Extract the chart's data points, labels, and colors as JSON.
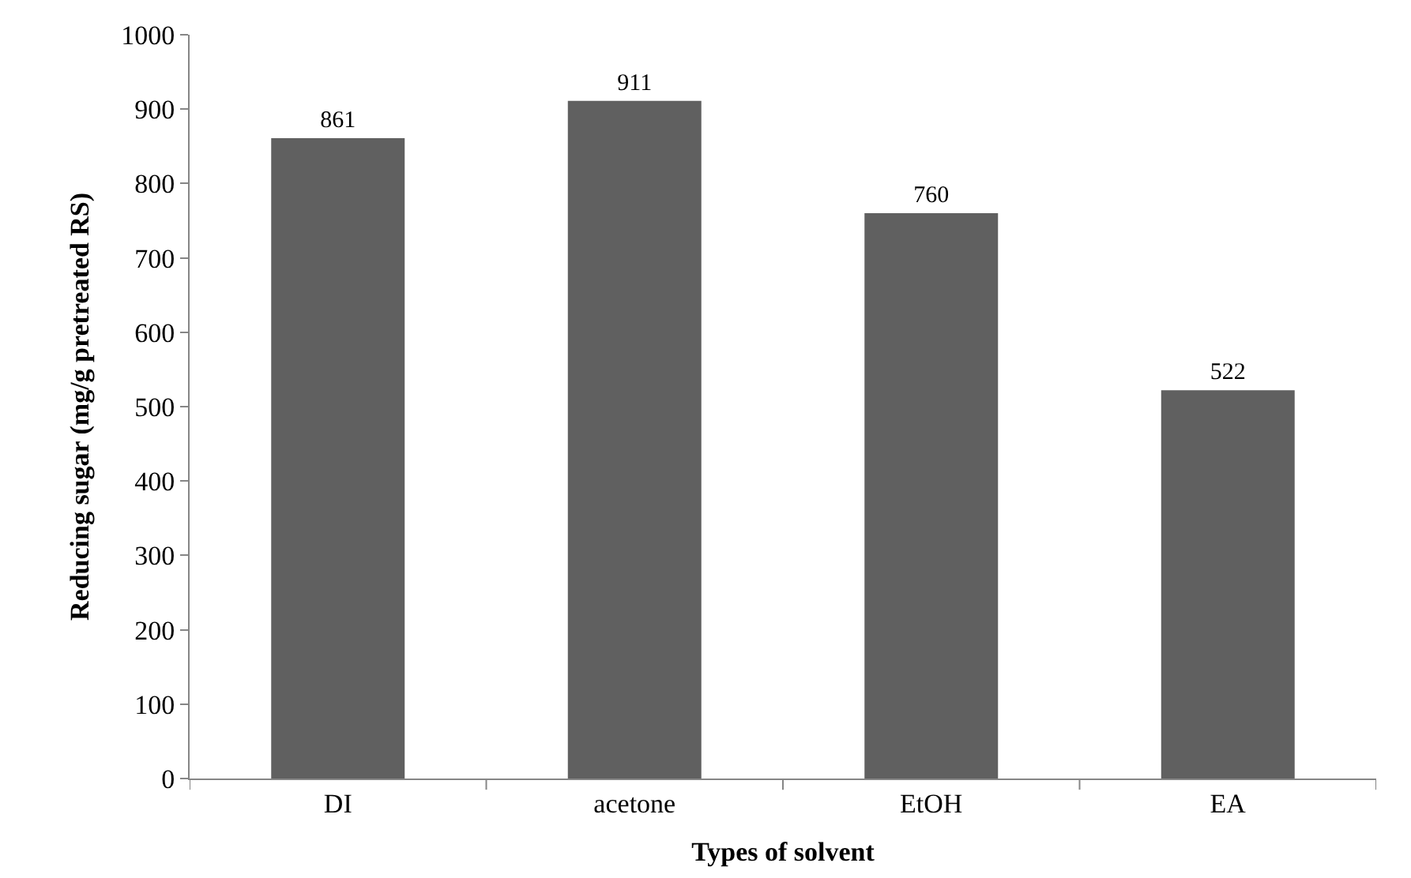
{
  "chart_data": {
    "type": "bar",
    "xlabel": "Types of solvent",
    "ylabel": "Reducing sugar (mg/g pretreated RS)",
    "categories": [
      "DI",
      "acetone",
      "EtOH",
      "EA"
    ],
    "values": [
      861,
      911,
      760,
      522
    ],
    "color": "#606060",
    "ylim": [
      0,
      1000
    ],
    "yticks": [
      0,
      100,
      200,
      300,
      400,
      500,
      600,
      700,
      800,
      900,
      1000
    ],
    "data_labels": true
  }
}
